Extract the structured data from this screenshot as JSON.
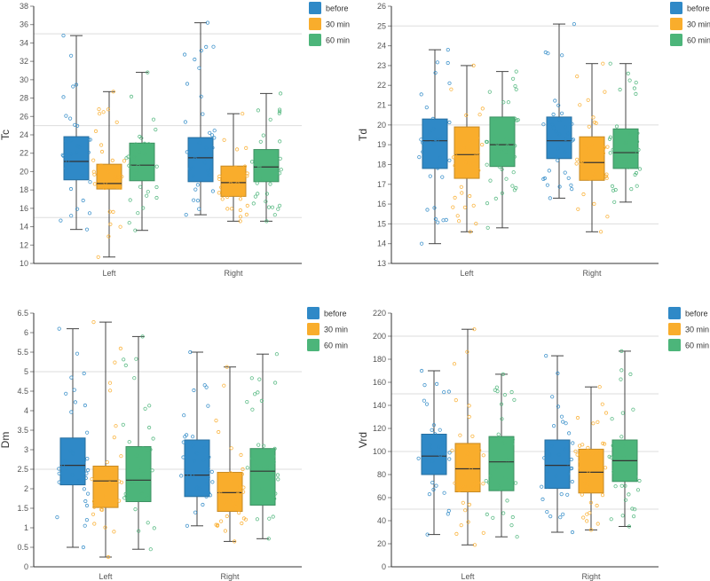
{
  "colors": {
    "before": "#2f89c7",
    "30 min": "#f9ad2c",
    "60 min": "#4cb57a",
    "grid": "#dddddd",
    "axis": "#333333"
  },
  "chart_data": [
    {
      "type": "box",
      "title": "",
      "xlabel": "",
      "ylabel": "Tc",
      "ylim": [
        10,
        38
      ],
      "yticks": [
        10,
        12,
        14,
        16,
        18,
        20,
        22,
        24,
        26,
        28,
        30,
        32,
        34,
        36,
        38
      ],
      "gridlines": [
        15,
        25,
        35
      ],
      "categories": [
        "Left",
        "Right"
      ],
      "legend": {
        "position": "top-right",
        "entries": [
          "before",
          "30 min",
          "60 min"
        ]
      },
      "series": [
        {
          "name": "before",
          "boxes": [
            {
              "min": 13.7,
              "q1": 19.1,
              "median": 21.1,
              "q3": 23.8,
              "max": 34.8
            },
            {
              "min": 15.3,
              "q1": 18.9,
              "median": 21.5,
              "q3": 23.7,
              "max": 36.2
            }
          ]
        },
        {
          "name": "30 min",
          "boxes": [
            {
              "min": 10.7,
              "q1": 18.1,
              "median": 18.7,
              "q3": 20.8,
              "max": 28.7
            },
            {
              "min": 14.6,
              "q1": 17.3,
              "median": 18.8,
              "q3": 20.6,
              "max": 26.3
            }
          ]
        },
        {
          "name": "60 min",
          "boxes": [
            {
              "min": 13.6,
              "q1": 19.0,
              "median": 20.7,
              "q3": 23.1,
              "max": 30.8
            },
            {
              "min": 14.6,
              "q1": 18.9,
              "median": 20.5,
              "q3": 22.4,
              "max": 28.5
            }
          ]
        }
      ]
    },
    {
      "type": "box",
      "title": "",
      "xlabel": "",
      "ylabel": "Td",
      "ylim": [
        13,
        26
      ],
      "yticks": [
        13,
        14,
        15,
        16,
        17,
        18,
        19,
        20,
        21,
        22,
        23,
        24,
        25,
        26
      ],
      "gridlines": [
        15,
        20,
        25
      ],
      "categories": [
        "Left",
        "Right"
      ],
      "legend": {
        "position": "top-right",
        "entries": [
          "before",
          "30 min",
          "60 min"
        ]
      },
      "series": [
        {
          "name": "before",
          "boxes": [
            {
              "min": 14.0,
              "q1": 17.8,
              "median": 19.2,
              "q3": 20.3,
              "max": 23.8
            },
            {
              "min": 16.3,
              "q1": 18.3,
              "median": 19.2,
              "q3": 20.4,
              "max": 25.1
            }
          ]
        },
        {
          "name": "30 min",
          "boxes": [
            {
              "min": 14.6,
              "q1": 17.3,
              "median": 18.5,
              "q3": 19.9,
              "max": 23.0
            },
            {
              "min": 14.6,
              "q1": 17.2,
              "median": 18.1,
              "q3": 19.4,
              "max": 23.1
            }
          ]
        },
        {
          "name": "60 min",
          "boxes": [
            {
              "min": 14.8,
              "q1": 17.9,
              "median": 19.0,
              "q3": 20.4,
              "max": 22.7
            },
            {
              "min": 16.1,
              "q1": 17.8,
              "median": 18.6,
              "q3": 19.8,
              "max": 23.1
            }
          ]
        }
      ]
    },
    {
      "type": "box",
      "title": "",
      "xlabel": "",
      "ylabel": "Dm",
      "ylim": [
        0,
        6.5
      ],
      "yticks": [
        0,
        0.5,
        1,
        1.5,
        2,
        2.5,
        3,
        3.5,
        4,
        4.5,
        5,
        5.5,
        6,
        6.5
      ],
      "gridlines": [
        2.5,
        5
      ],
      "categories": [
        "Left",
        "Right"
      ],
      "legend": {
        "position": "top-right",
        "entries": [
          "before",
          "30 min",
          "60 min"
        ]
      },
      "series": [
        {
          "name": "before",
          "boxes": [
            {
              "min": 0.5,
              "q1": 2.1,
              "median": 2.6,
              "q3": 3.3,
              "max": 6.1
            },
            {
              "min": 1.05,
              "q1": 1.8,
              "median": 2.35,
              "q3": 3.25,
              "max": 5.5
            }
          ]
        },
        {
          "name": "30 min",
          "boxes": [
            {
              "min": 0.25,
              "q1": 1.52,
              "median": 2.2,
              "q3": 2.58,
              "max": 6.27
            },
            {
              "min": 0.65,
              "q1": 1.42,
              "median": 1.9,
              "q3": 2.42,
              "max": 5.12
            }
          ]
        },
        {
          "name": "60 min",
          "boxes": [
            {
              "min": 0.45,
              "q1": 1.67,
              "median": 2.22,
              "q3": 3.08,
              "max": 5.9
            },
            {
              "min": 0.72,
              "q1": 1.58,
              "median": 2.45,
              "q3": 3.03,
              "max": 5.45
            }
          ]
        }
      ]
    },
    {
      "type": "box",
      "title": "",
      "xlabel": "",
      "ylabel": "Vrd",
      "ylim": [
        0,
        220
      ],
      "yticks": [
        0,
        20,
        40,
        60,
        80,
        100,
        120,
        140,
        160,
        180,
        200,
        220
      ],
      "gridlines": [
        50,
        100,
        150,
        200
      ],
      "categories": [
        "Left",
        "Right"
      ],
      "legend": {
        "position": "top-right",
        "entries": [
          "before",
          "30 min",
          "60 min"
        ]
      },
      "series": [
        {
          "name": "before",
          "boxes": [
            {
              "min": 28,
              "q1": 80,
              "median": 96,
              "q3": 115,
              "max": 170
            },
            {
              "min": 30,
              "q1": 68,
              "median": 88,
              "q3": 110,
              "max": 183
            }
          ]
        },
        {
          "name": "30 min",
          "boxes": [
            {
              "min": 19,
              "q1": 65,
              "median": 85,
              "q3": 107,
              "max": 206
            },
            {
              "min": 32,
              "q1": 64,
              "median": 82,
              "q3": 102,
              "max": 156
            }
          ]
        },
        {
          "name": "60 min",
          "boxes": [
            {
              "min": 26,
              "q1": 66,
              "median": 91,
              "q3": 113,
              "max": 167
            },
            {
              "min": 35,
              "q1": 74,
              "median": 92,
              "q3": 110,
              "max": 187
            }
          ]
        }
      ]
    }
  ]
}
